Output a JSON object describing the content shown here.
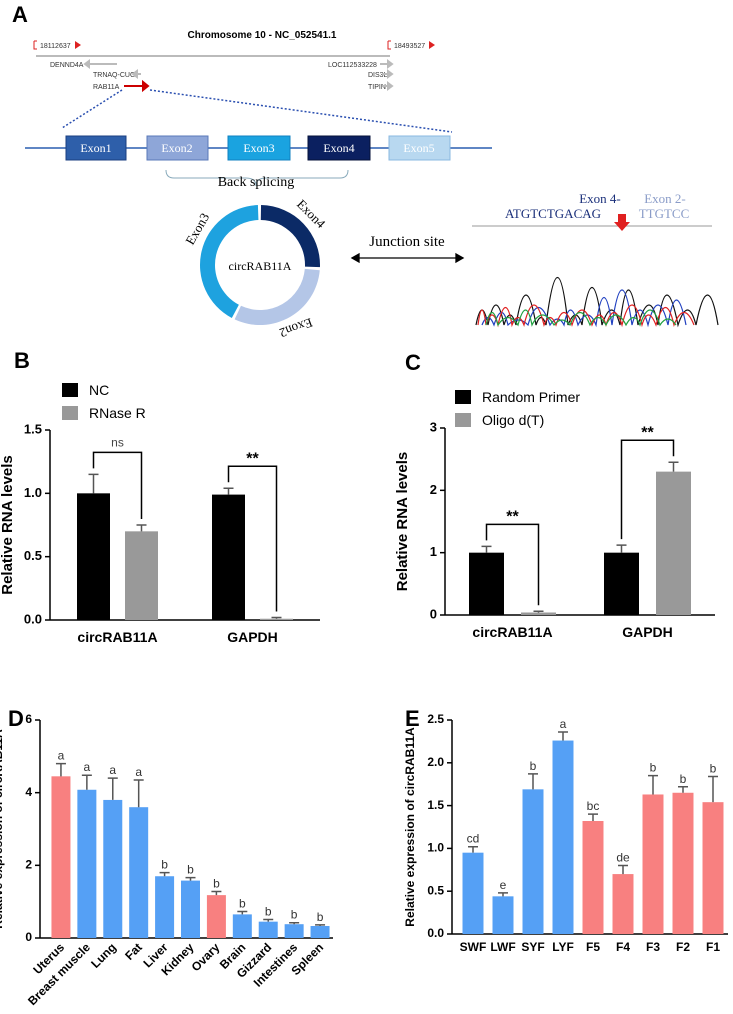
{
  "panel_a": {
    "label": "A",
    "chromosome": "Chromosome 10 - NC_052541.1",
    "start": "18112637",
    "end": "18493527",
    "genes": [
      "DENND4A",
      "TRNAQ-CUG",
      "RAB11A",
      "LOC112533228",
      "DIS3L",
      "TIPIN"
    ],
    "exons": [
      "Exon1",
      "Exon2",
      "Exon3",
      "Exon4",
      "Exon5"
    ],
    "back_splicing": "Back splicing",
    "ring": {
      "center": "circRAB11A",
      "segments": [
        "Exon4",
        "Exon2",
        "Exon3"
      ]
    },
    "junction": "Junction site",
    "exon4_label": "Exon 4-",
    "exon4_seq": "ATGTCTGACAG",
    "exon2_label": "Exon 2-",
    "exon2_seq": "TTGTCC"
  },
  "chart_data": [
    {
      "type": "bar",
      "label": "B",
      "ylabel": "Relative RNA levels",
      "categories": [
        "circRAB11A",
        "GAPDH"
      ],
      "series": [
        {
          "name": "NC",
          "color": "#000000",
          "values": [
            1.0,
            0.99
          ],
          "errors": [
            0.15,
            0.05
          ]
        },
        {
          "name": "RNase R",
          "color": "#999999",
          "values": [
            0.7,
            0.01
          ],
          "errors": [
            0.05,
            0.01
          ]
        }
      ],
      "significance": [
        "ns",
        "**"
      ],
      "ylim": [
        0,
        1.5
      ],
      "yticks": [
        {
          "value": 0,
          "label": "0.0"
        },
        0.5,
        {
          "value": 1,
          "label": "1.0"
        },
        1.5
      ],
      "legend": "top-left"
    },
    {
      "type": "bar",
      "label": "C",
      "ylabel": "Relative RNA levels",
      "categories": [
        "circRAB11A",
        "GAPDH"
      ],
      "series": [
        {
          "name": "Random Primer",
          "color": "#000000",
          "values": [
            1.0,
            1.0
          ],
          "errors": [
            0.1,
            0.12
          ]
        },
        {
          "name": "Oligo d(T)",
          "color": "#999999",
          "values": [
            0.04,
            2.3
          ],
          "errors": [
            0.02,
            0.15
          ]
        }
      ],
      "significance": [
        "**",
        "**"
      ],
      "ylim": [
        0,
        3
      ],
      "yticks": [
        0,
        1,
        2,
        3
      ],
      "legend": "top-left"
    },
    {
      "type": "bar",
      "label": "D",
      "ylabel": "Relative expression of circRAB11A",
      "categories": [
        "Uterus",
        "Breast muscle",
        "Lung",
        "Fat",
        "Liver",
        "Kidney",
        "Ovary",
        "Brain",
        "Gizzard",
        "Intestines",
        "Spleen"
      ],
      "values": [
        4.45,
        4.08,
        3.8,
        3.6,
        1.7,
        1.58,
        1.18,
        0.65,
        0.45,
        0.38,
        0.33
      ],
      "errors": [
        0.35,
        0.4,
        0.6,
        0.75,
        0.1,
        0.08,
        0.1,
        0.08,
        0.06,
        0.04,
        0.03
      ],
      "colors": [
        "#f88080",
        "#55a0f5",
        "#55a0f5",
        "#55a0f5",
        "#55a0f5",
        "#55a0f5",
        "#f88080",
        "#55a0f5",
        "#55a0f5",
        "#55a0f5",
        "#55a0f5"
      ],
      "annotations": [
        "a",
        "a",
        "a",
        "a",
        "b",
        "b",
        "b",
        "b",
        "b",
        "b",
        "b"
      ],
      "ylim": [
        0,
        6
      ],
      "yticks": [
        0,
        2,
        4,
        6
      ]
    },
    {
      "type": "bar",
      "label": "E",
      "ylabel": "Relative expression of circRAB11A",
      "categories": [
        "SWF",
        "LWF",
        "SYF",
        "LYF",
        "F5",
        "F4",
        "F3",
        "F2",
        "F1"
      ],
      "values": [
        0.95,
        0.44,
        1.69,
        2.26,
        1.32,
        0.7,
        1.63,
        1.65,
        1.54
      ],
      "errors": [
        0.07,
        0.04,
        0.18,
        0.1,
        0.08,
        0.1,
        0.22,
        0.07,
        0.3
      ],
      "colors": [
        "#55a0f5",
        "#55a0f5",
        "#55a0f5",
        "#55a0f5",
        "#f88080",
        "#f88080",
        "#f88080",
        "#f88080",
        "#f88080"
      ],
      "annotations": [
        "cd",
        "e",
        "b",
        "a",
        "bc",
        "de",
        "b",
        "b",
        "b"
      ],
      "ylim": [
        0,
        2.5
      ],
      "yticks": [
        {
          "value": 0,
          "label": "0.0"
        },
        0.5,
        {
          "value": 1,
          "label": "1.0"
        },
        1.5,
        {
          "value": 2,
          "label": "2.0"
        },
        2.5
      ]
    }
  ]
}
